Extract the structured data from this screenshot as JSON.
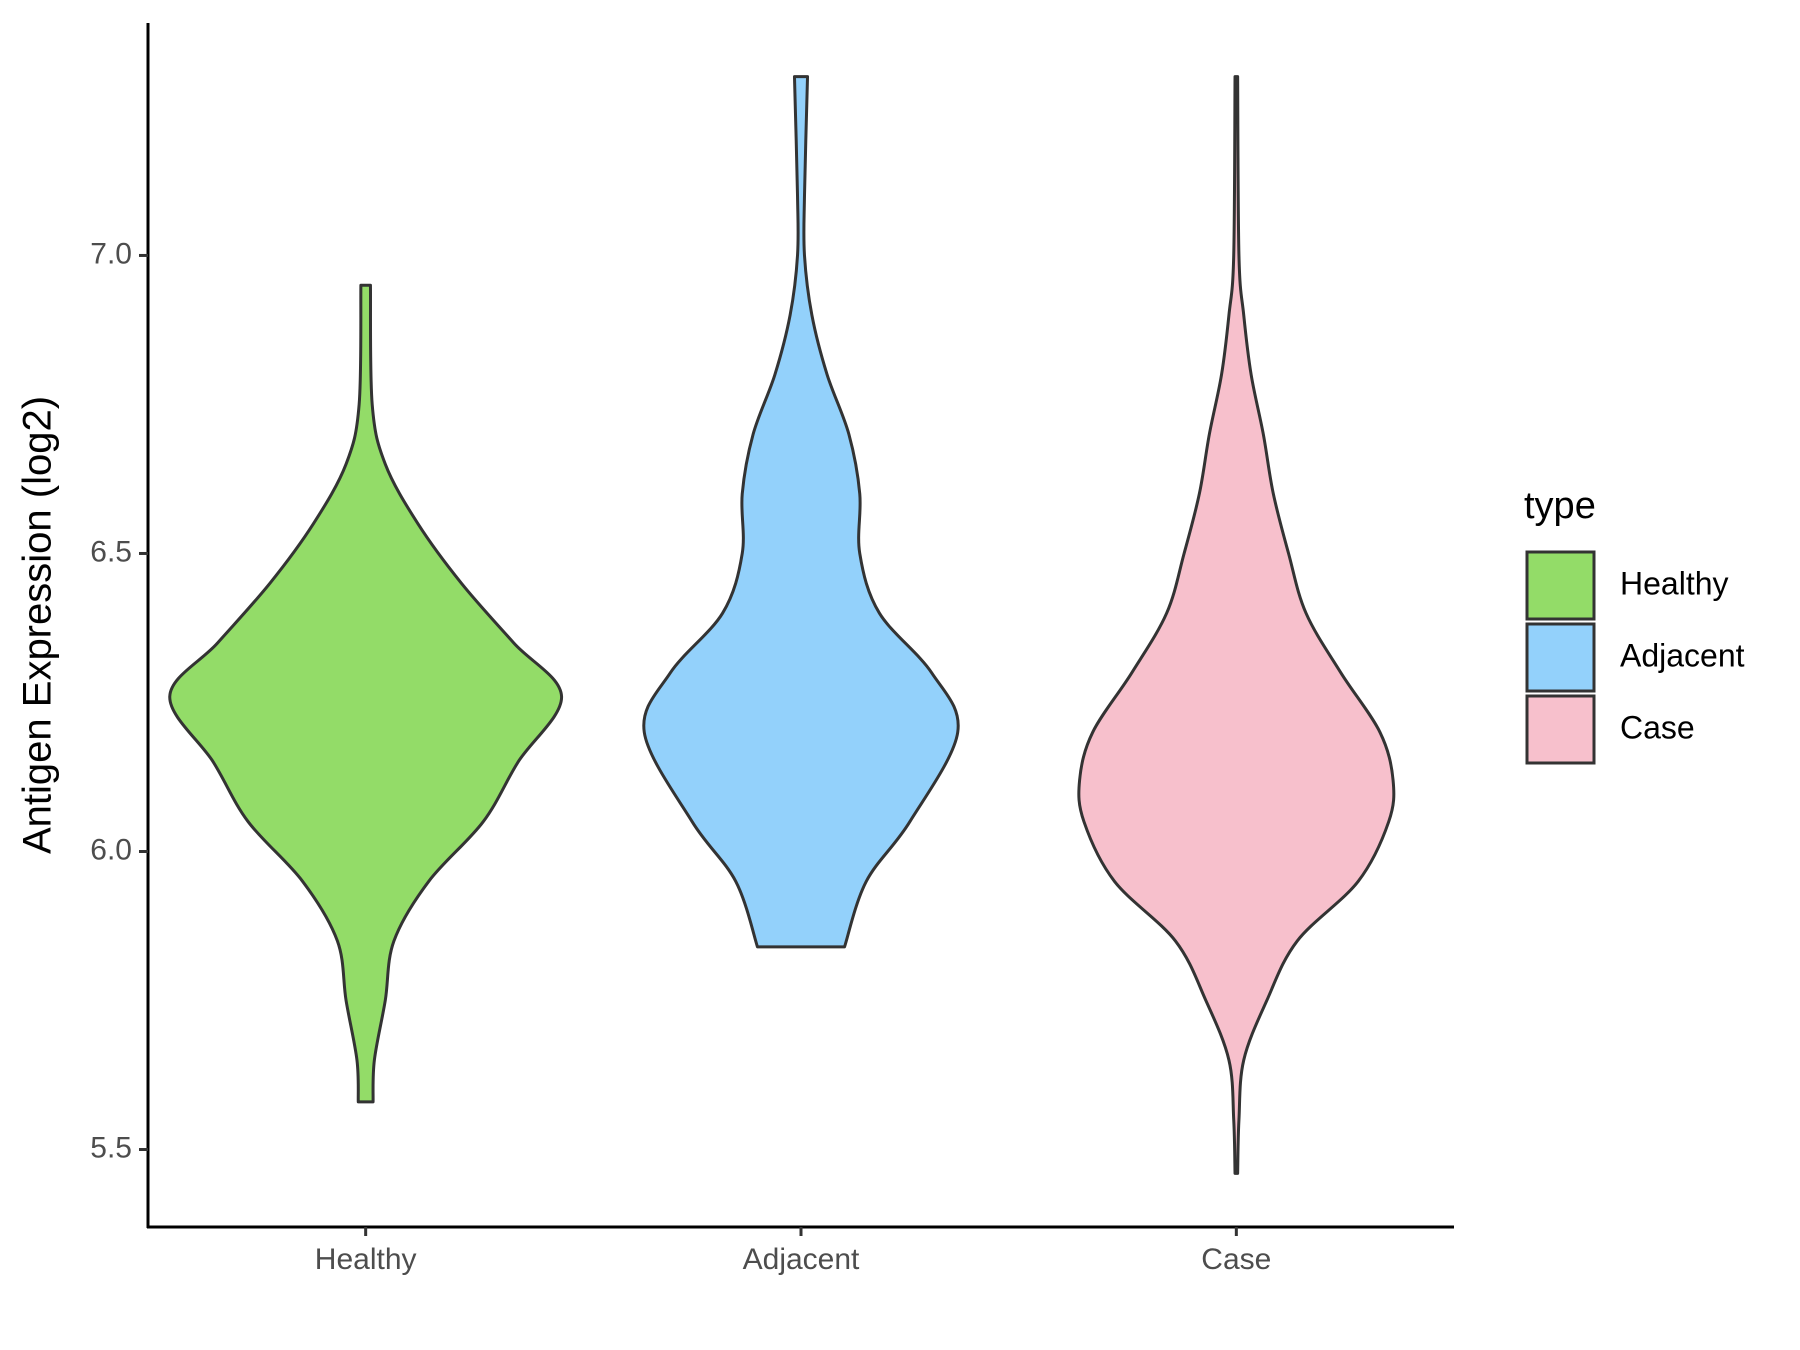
{
  "chart_data": {
    "type": "violin",
    "y_label": "Antigen Expression (log2)",
    "categories": [
      "Healthy",
      "Adjacent",
      "Case"
    ],
    "ylim": [
      5.37,
      7.39
    ],
    "yticks": [
      {
        "value": 5.5,
        "label": "5.5"
      },
      {
        "value": 6.0,
        "label": "6.0"
      },
      {
        "value": 6.5,
        "label": "6.5"
      },
      {
        "value": 7.0,
        "label": "7.0"
      }
    ],
    "legend_title": "type",
    "legend_position": "right",
    "series": [
      {
        "name": "Healthy",
        "color": "#93dc68",
        "y": [
          5.58,
          5.65,
          5.75,
          5.85,
          5.95,
          6.05,
          6.15,
          6.26,
          6.35,
          6.45,
          6.55,
          6.65,
          6.75,
          6.95
        ],
        "density": [
          0.017,
          0.02,
          0.045,
          0.065,
          0.145,
          0.27,
          0.35,
          0.45,
          0.34,
          0.22,
          0.12,
          0.045,
          0.015,
          0.011
        ]
      },
      {
        "name": "Adjacent",
        "color": "#93d1fb",
        "y": [
          5.84,
          5.95,
          6.05,
          6.2,
          6.3,
          6.4,
          6.5,
          6.6,
          6.7,
          6.8,
          6.9,
          7.0,
          7.1,
          7.3
        ],
        "density": [
          0.1,
          0.15,
          0.25,
          0.36,
          0.3,
          0.18,
          0.135,
          0.135,
          0.11,
          0.06,
          0.025,
          0.008,
          0.008,
          0.015
        ]
      },
      {
        "name": "Case",
        "color": "#f7c0cc",
        "y": [
          5.46,
          5.55,
          5.65,
          5.75,
          5.85,
          5.95,
          6.05,
          6.12,
          6.2,
          6.3,
          6.4,
          6.5,
          6.6,
          6.7,
          6.8,
          6.9,
          7.0,
          7.3
        ],
        "density": [
          0.003,
          0.006,
          0.017,
          0.07,
          0.14,
          0.28,
          0.35,
          0.36,
          0.33,
          0.24,
          0.16,
          0.12,
          0.085,
          0.062,
          0.034,
          0.017,
          0.006,
          0.003
        ]
      }
    ]
  }
}
